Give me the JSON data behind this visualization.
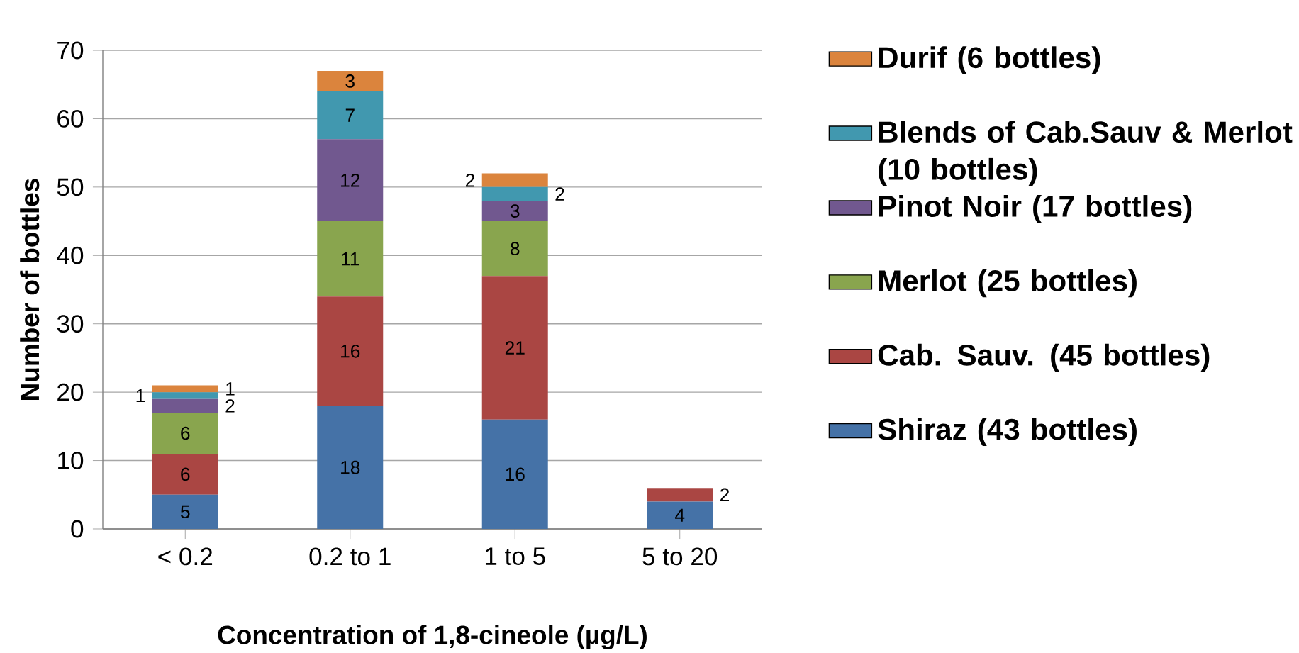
{
  "chart_data": {
    "type": "bar",
    "stacked": true,
    "xlabel": "Concentration of 1,8-cineole (µg/L)",
    "ylabel": "Number of bottles",
    "categories": [
      "< 0.2",
      "0.2 to 1",
      "1 to 5",
      "5 to 20"
    ],
    "series": [
      {
        "name": "Shiraz (43 bottles)",
        "color": "#4572a7",
        "values": [
          5,
          18,
          16,
          4
        ]
      },
      {
        "name": "Cab. Sauv. (45 bottles)",
        "color": "#aa4643",
        "values": [
          6,
          16,
          21,
          2
        ]
      },
      {
        "name": "Merlot (25 bottles)",
        "color": "#89a54e",
        "values": [
          6,
          11,
          8,
          null
        ]
      },
      {
        "name": "Pinot Noir (17 bottles)",
        "color": "#71588f",
        "values": [
          2,
          12,
          3,
          null
        ]
      },
      {
        "name": "Blends of Cab.Sauv & Merlot (10 bottles)",
        "color": "#4198af",
        "values": [
          1,
          7,
          2,
          null
        ]
      },
      {
        "name": "Durif (6 bottles)",
        "color": "#db843d",
        "values": [
          1,
          3,
          2,
          null
        ]
      }
    ],
    "ylim": [
      0,
      70
    ],
    "yticks": [
      0,
      10,
      20,
      30,
      40,
      50,
      60,
      70
    ],
    "grid": "y",
    "legend": "right",
    "data_labels": true
  }
}
